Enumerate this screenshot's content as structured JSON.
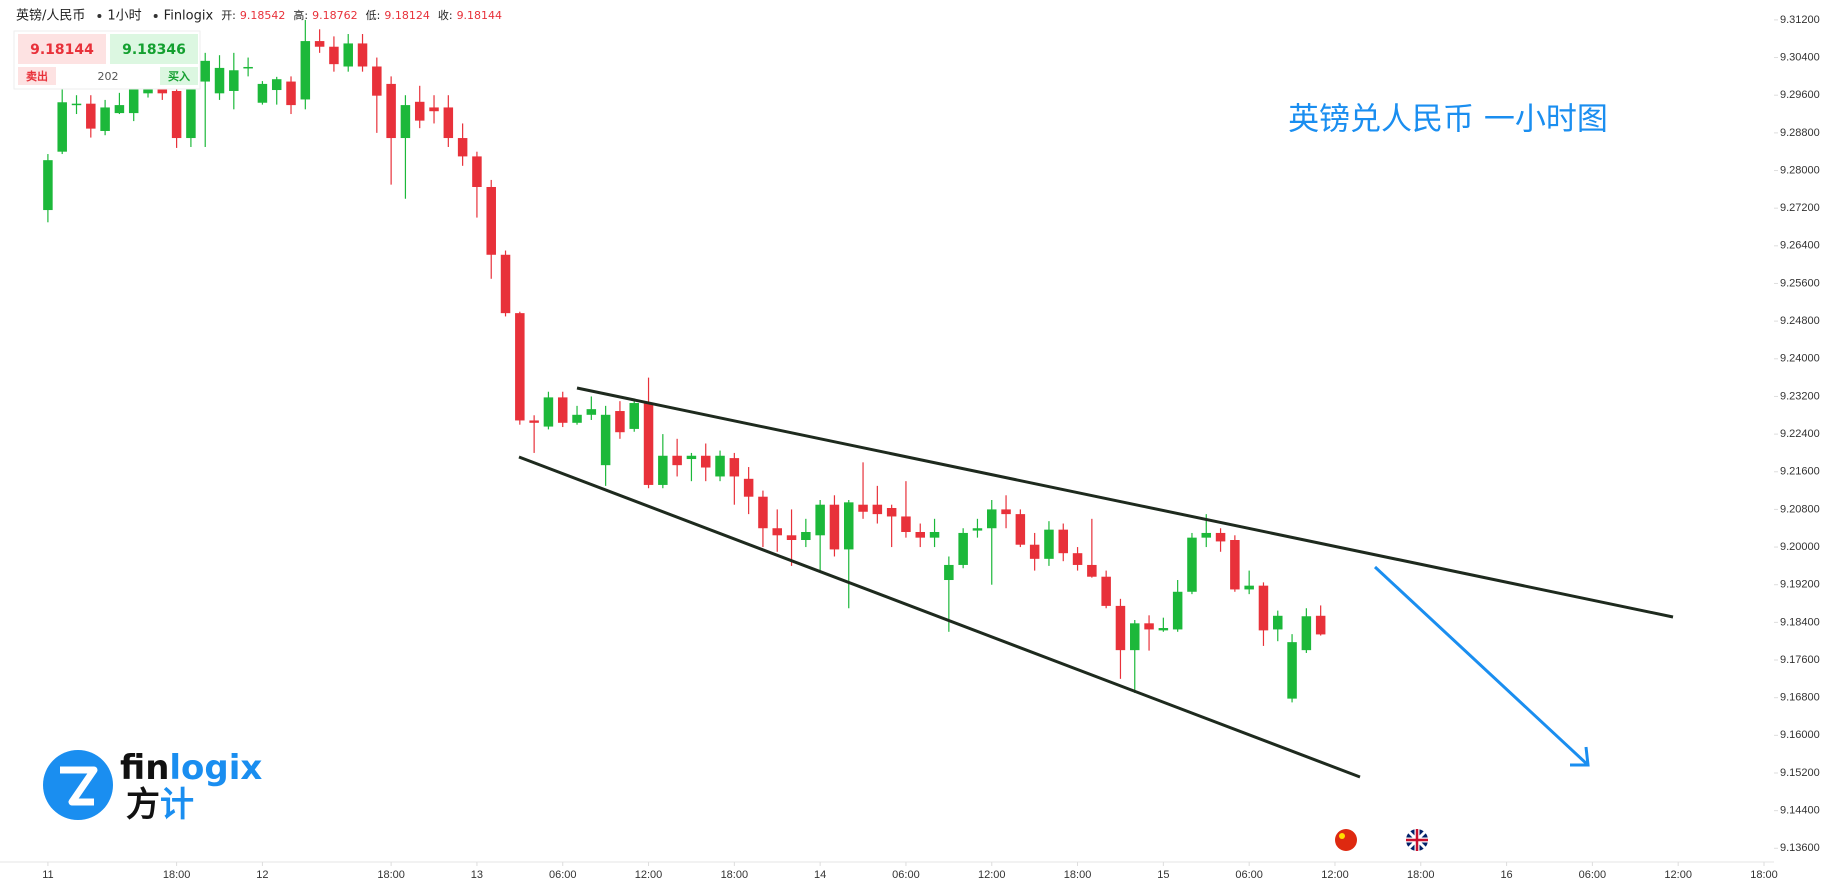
{
  "header": {
    "symbol": "英镑/人民币",
    "interval": "1小时",
    "source": "Finlogix",
    "open_label": "开:",
    "open": 9.18542,
    "high_label": "高:",
    "high": 9.18762,
    "low_label": "低:",
    "low": 9.18124,
    "close_label": "收:",
    "close": 9.18144
  },
  "quote": {
    "sell_price": 9.18144,
    "buy_price": 9.18346,
    "sell_label": "卖出",
    "spread": 202,
    "buy_label": "买入"
  },
  "logo": {
    "latin_a": "fin",
    "latin_b": "logix",
    "chinese_a": "方",
    "chinese_b": "计"
  },
  "chart_data": {
    "type": "candlestick",
    "title": "英镑兑人民币 一小时图",
    "up_color": "#1cb83a",
    "down_color": "#e8313a",
    "xlim": [
      -3.35,
      120.7
    ],
    "xticks": [
      {
        "value": 0,
        "label": "11"
      },
      {
        "value": 9,
        "label": "18:00"
      },
      {
        "value": 15,
        "label": "12"
      },
      {
        "value": 24,
        "label": "18:00"
      },
      {
        "value": 30,
        "label": "13"
      },
      {
        "value": 36,
        "label": "06:00"
      },
      {
        "value": 42,
        "label": "12:00"
      },
      {
        "value": 48,
        "label": "18:00"
      },
      {
        "value": 54,
        "label": "14"
      },
      {
        "value": 60,
        "label": "06:00"
      },
      {
        "value": 66,
        "label": "12:00"
      },
      {
        "value": 72,
        "label": "18:00"
      },
      {
        "value": 78,
        "label": "15"
      },
      {
        "value": 84,
        "label": "06:00"
      },
      {
        "value": 90,
        "label": "12:00"
      },
      {
        "value": 96,
        "label": "18:00"
      },
      {
        "value": 102,
        "label": "16"
      },
      {
        "value": 108,
        "label": "06:00"
      },
      {
        "value": 114,
        "label": "12:00"
      },
      {
        "value": 120,
        "label": "18:00"
      }
    ],
    "ylim": [
      9.136,
      9.312
    ],
    "yticks": [
      {
        "value": 9.312,
        "label": "9.31200"
      },
      {
        "value": 9.304,
        "label": "9.30400"
      },
      {
        "value": 9.296,
        "label": "9.29600"
      },
      {
        "value": 9.288,
        "label": "9.28800"
      },
      {
        "value": 9.28,
        "label": "9.28000"
      },
      {
        "value": 9.272,
        "label": "9.27200"
      },
      {
        "value": 9.264,
        "label": "9.26400"
      },
      {
        "value": 9.256,
        "label": "9.25600"
      },
      {
        "value": 9.248,
        "label": "9.24800"
      },
      {
        "value": 9.24,
        "label": "9.24000"
      },
      {
        "value": 9.232,
        "label": "9.23200"
      },
      {
        "value": 9.224,
        "label": "9.22400"
      },
      {
        "value": 9.216,
        "label": "9.21600"
      },
      {
        "value": 9.208,
        "label": "9.20800"
      },
      {
        "value": 9.2,
        "label": "9.20000"
      },
      {
        "value": 9.192,
        "label": "9.19200"
      },
      {
        "value": 9.184,
        "label": "9.18400"
      },
      {
        "value": 9.176,
        "label": "9.17600"
      },
      {
        "value": 9.168,
        "label": "9.16800"
      },
      {
        "value": 9.16,
        "label": "9.16000"
      },
      {
        "value": 9.152,
        "label": "9.15200"
      },
      {
        "value": 9.144,
        "label": "9.14400"
      },
      {
        "value": 9.136,
        "label": "9.13600"
      }
    ],
    "open": [
      9.2716,
      9.284,
      9.294,
      9.2942,
      9.2884,
      9.2922,
      9.2922,
      9.2964,
      9.2976,
      9.2969,
      9.2869,
      9.2989,
      9.2964,
      9.2969,
      9.3018,
      9.2944,
      9.2971,
      9.2989,
      9.2951,
      9.3075,
      9.3063,
      9.3021,
      9.307,
      9.3021,
      9.2984,
      9.2869,
      9.2946,
      9.2934,
      9.2934,
      9.2869,
      9.283,
      9.2765,
      9.2621,
      9.2497,
      9.2269,
      9.2256,
      9.2318,
      9.2264,
      9.2281,
      9.2174,
      9.2289,
      9.2251,
      9.2306,
      9.2132,
      9.2194,
      9.2187,
      9.2194,
      9.215,
      9.2189,
      9.2145,
      9.2107,
      9.204,
      9.2025,
      9.2015,
      9.2025,
      9.209,
      9.1995,
      9.209,
      9.209,
      9.2083,
      9.2065,
      9.2032,
      9.202,
      9.193,
      9.1962,
      9.2035,
      9.204,
      9.208,
      9.207,
      9.2005,
      9.1975,
      9.2037,
      9.1987,
      9.1962,
      9.1937,
      9.1875,
      9.1781,
      9.1838,
      9.1823,
      9.1825,
      9.1905,
      9.202,
      9.203,
      9.2015,
      9.191,
      9.1918,
      9.1825,
      9.1678,
      9.1781,
      9.1854
    ],
    "high": [
      9.2835,
      9.301,
      9.296,
      9.296,
      9.295,
      9.2965,
      9.302,
      9.303,
      9.3,
      9.298,
      9.301,
      9.305,
      9.3045,
      9.305,
      9.304,
      9.299,
      9.2999,
      9.3,
      9.312,
      9.31,
      9.3085,
      9.309,
      9.309,
      9.304,
      9.3,
      9.296,
      9.298,
      9.296,
      9.296,
      9.29,
      9.284,
      9.278,
      9.263,
      9.25,
      9.228,
      9.233,
      9.233,
      9.23,
      9.232,
      9.23,
      9.231,
      9.231,
      9.236,
      9.224,
      9.223,
      9.22,
      9.222,
      9.2205,
      9.22,
      9.217,
      9.212,
      9.208,
      9.208,
      9.206,
      9.21,
      9.211,
      9.21,
      9.218,
      9.213,
      9.209,
      9.214,
      9.205,
      9.206,
      9.198,
      9.204,
      9.206,
      9.21,
      9.211,
      9.208,
      9.203,
      9.2055,
      9.205,
      9.2,
      9.206,
      9.195,
      9.189,
      9.1845,
      9.1855,
      9.185,
      9.193,
      9.203,
      9.207,
      9.204,
      9.2025,
      9.195,
      9.1925,
      9.1865,
      9.1815,
      9.187,
      9.1876
    ],
    "low": [
      9.269,
      9.2835,
      9.292,
      9.287,
      9.2875,
      9.292,
      9.2905,
      9.2955,
      9.295,
      9.2848,
      9.285,
      9.285,
      9.295,
      9.293,
      9.3,
      9.294,
      9.294,
      9.292,
      9.293,
      9.305,
      9.301,
      9.301,
      9.301,
      9.288,
      9.277,
      9.274,
      9.289,
      9.29,
      9.285,
      9.281,
      9.27,
      9.257,
      9.249,
      9.226,
      9.22,
      9.225,
      9.2255,
      9.226,
      9.227,
      9.213,
      9.223,
      9.2245,
      9.2125,
      9.2125,
      9.215,
      9.214,
      9.214,
      9.214,
      9.209,
      9.207,
      9.2,
      9.199,
      9.196,
      9.2,
      9.195,
      9.198,
      9.187,
      9.206,
      9.205,
      9.2,
      9.202,
      9.2,
      9.2,
      9.182,
      9.1955,
      9.202,
      9.192,
      9.204,
      9.2,
      9.195,
      9.196,
      9.197,
      9.195,
      9.1935,
      9.187,
      9.172,
      9.169,
      9.178,
      9.182,
      9.182,
      9.19,
      9.2,
      9.199,
      9.1905,
      9.19,
      9.179,
      9.18,
      9.167,
      9.1775,
      9.1812
    ],
    "close": [
      9.2822,
      9.2945,
      9.2942,
      9.2889,
      9.2934,
      9.2939,
      9.2989,
      9.2996,
      9.2964,
      9.2869,
      9.2989,
      9.3033,
      9.3018,
      9.3013,
      9.302,
      9.2984,
      9.2994,
      9.2939,
      9.3075,
      9.3063,
      9.3026,
      9.307,
      9.3021,
      9.2959,
      9.2869,
      9.2939,
      9.2906,
      9.2926,
      9.2869,
      9.283,
      9.2765,
      9.2621,
      9.2497,
      9.2269,
      9.2264,
      9.2318,
      9.2264,
      9.2281,
      9.2293,
      9.2281,
      9.2244,
      9.2306,
      9.2132,
      9.2194,
      9.2174,
      9.2194,
      9.2169,
      9.2194,
      9.215,
      9.2107,
      9.204,
      9.2025,
      9.2015,
      9.2032,
      9.209,
      9.1995,
      9.2095,
      9.2075,
      9.207,
      9.2065,
      9.2032,
      9.202,
      9.2032,
      9.1962,
      9.203,
      9.204,
      9.208,
      9.207,
      9.2005,
      9.1975,
      9.2037,
      9.1987,
      9.1962,
      9.1937,
      9.1875,
      9.1781,
      9.1838,
      9.1825,
      9.1828,
      9.1905,
      9.202,
      9.203,
      9.2012,
      9.191,
      9.1918,
      9.1823,
      9.1854,
      9.1798,
      9.1853,
      9.18144
    ]
  }
}
